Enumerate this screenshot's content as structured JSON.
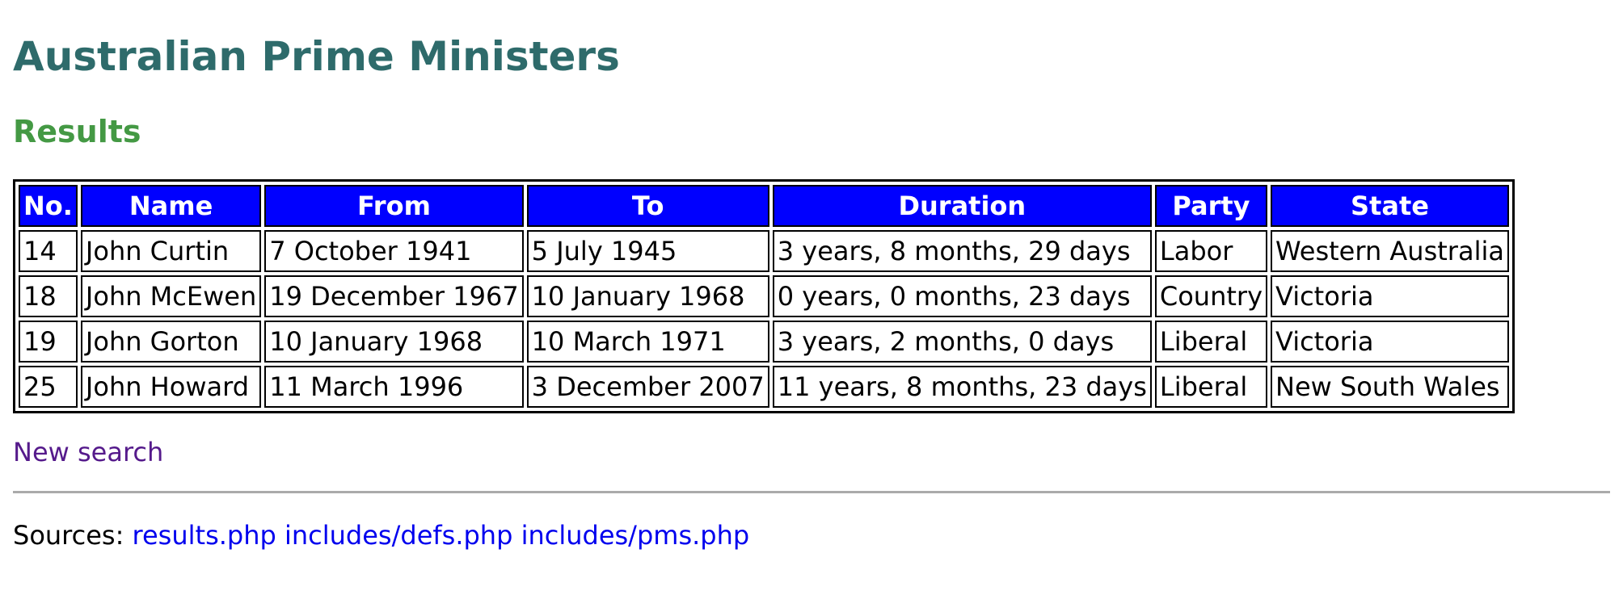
{
  "page": {
    "title": "Australian Prime Ministers",
    "subtitle": "Results"
  },
  "table": {
    "headers": [
      "No.",
      "Name",
      "From",
      "To",
      "Duration",
      "Party",
      "State"
    ],
    "rows": [
      [
        "14",
        "John Curtin",
        "7 October 1941",
        "5 July 1945",
        "3 years, 8 months, 29 days",
        "Labor",
        "Western Australia"
      ],
      [
        "18",
        "John McEwen",
        "19 December 1967",
        "10 January 1968",
        "0 years, 0 months, 23 days",
        "Country",
        "Victoria"
      ],
      [
        "19",
        "John Gorton",
        "10 January 1968",
        "10 March 1971",
        "3 years, 2 months, 0 days",
        "Liberal",
        "Victoria"
      ],
      [
        "25",
        "John Howard",
        "11 March 1996",
        "3 December 2007",
        "11 years, 8 months, 23 days",
        "Liberal",
        "New South Wales"
      ]
    ]
  },
  "links": {
    "new_search": "New search"
  },
  "sources": {
    "label": "Sources:",
    "files": [
      "results.php",
      "includes/defs.php",
      "includes/pms.php"
    ]
  },
  "colors": {
    "title": "#2e6b6b",
    "subtitle": "#449944",
    "header_bg": "#0000ff",
    "header_text": "#ffffff",
    "visited_link": "#551a8b",
    "link": "#0000ee"
  }
}
